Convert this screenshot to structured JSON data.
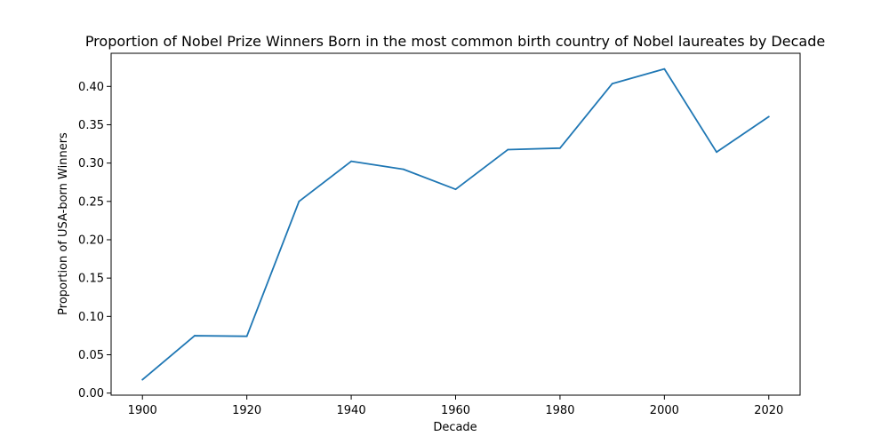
{
  "chart_data": {
    "type": "line",
    "title": "Proportion of Nobel Prize Winners Born in the most common birth country of Nobel laureates by Decade",
    "xlabel": "Decade",
    "ylabel": "Proportion of USA-born Winners",
    "x": [
      1900,
      1910,
      1920,
      1930,
      1940,
      1950,
      1960,
      1970,
      1980,
      1990,
      2000,
      2010,
      2020
    ],
    "series": [
      {
        "values": [
          0.0175,
          0.0748,
          0.0741,
          0.25,
          0.3023,
          0.2919,
          0.2658,
          0.3175,
          0.3195,
          0.4035,
          0.4228,
          0.3143,
          0.3605
        ],
        "color": "#1f77b4"
      }
    ],
    "xlim": [
      1894,
      2026
    ],
    "ylim": [
      -0.0027,
      0.4432
    ],
    "xticks": [
      1900,
      1920,
      1940,
      1960,
      1980,
      2000,
      2020
    ],
    "xtick_labels": [
      "1900",
      "1920",
      "1940",
      "1960",
      "1980",
      "2000",
      "2020"
    ],
    "yticks": [
      0.0,
      0.05,
      0.1,
      0.15,
      0.2,
      0.25,
      0.3,
      0.35,
      0.4
    ],
    "ytick_labels": [
      "0.00",
      "0.05",
      "0.10",
      "0.15",
      "0.20",
      "0.25",
      "0.30",
      "0.35",
      "0.40"
    ],
    "grid": false,
    "legend": "none"
  }
}
